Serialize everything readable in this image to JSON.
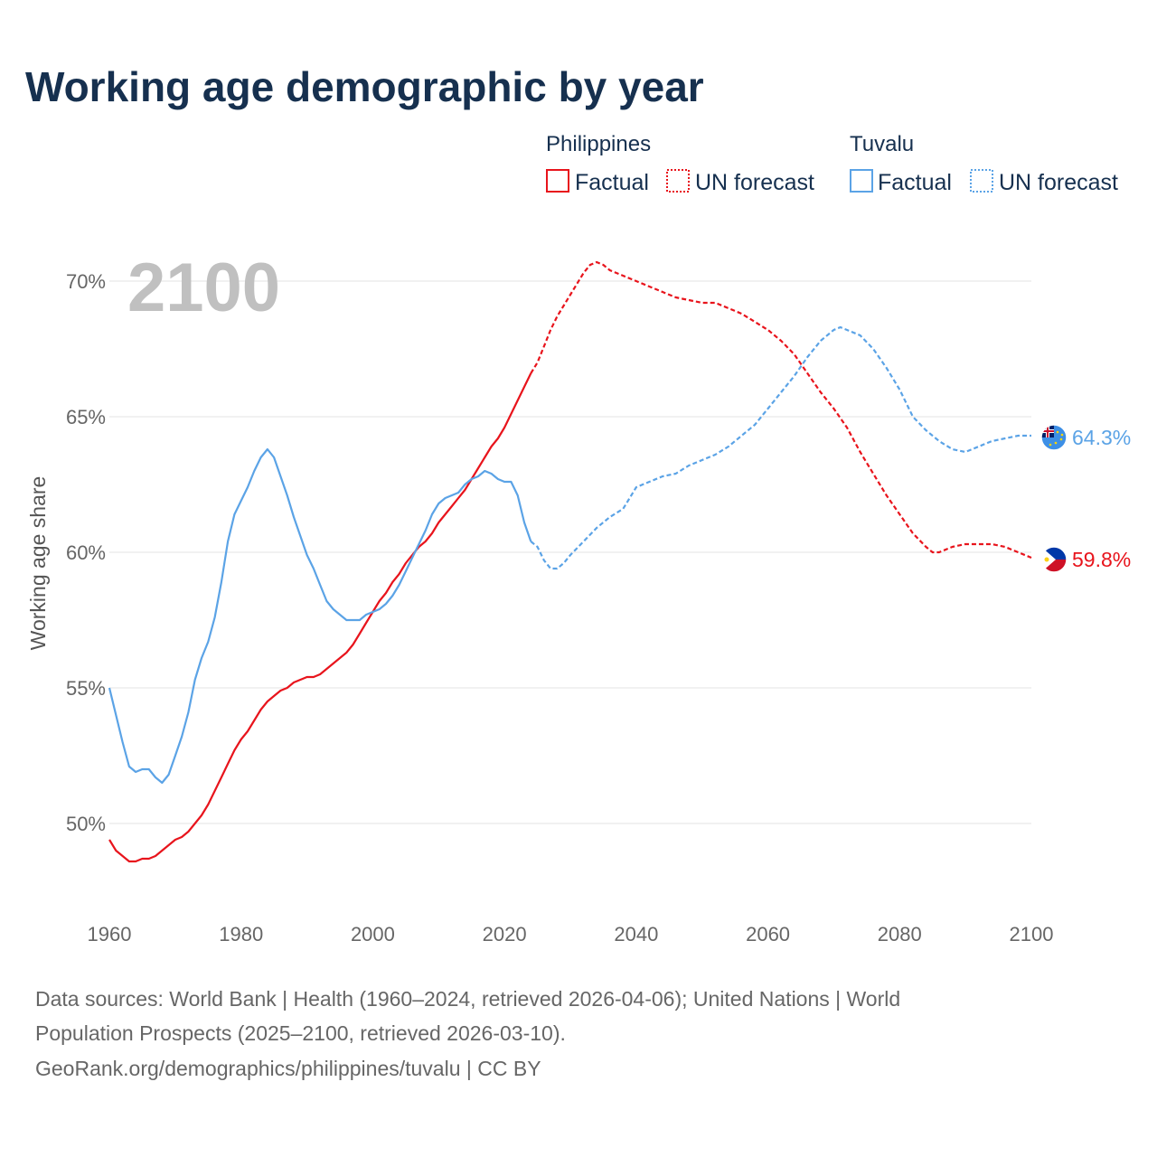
{
  "chart_data": {
    "type": "line",
    "title": "Working age demographic by year",
    "ylabel": "Working age share",
    "xlabel": "",
    "highlight_year": "2100",
    "xlim": [
      1960,
      2100
    ],
    "ylim": [
      47,
      72
    ],
    "x_ticks": [
      1960,
      1980,
      2000,
      2020,
      2040,
      2060,
      2080,
      2100
    ],
    "x_tick_labels": [
      "1960",
      "1980",
      "2000",
      "2020",
      "2040",
      "2060",
      "2080",
      "2100"
    ],
    "y_ticks": [
      50,
      55,
      60,
      65,
      70
    ],
    "y_tick_labels": [
      "50%",
      "55%",
      "60%",
      "65%",
      "70%"
    ],
    "legend": {
      "groups": [
        {
          "name": "Philippines",
          "color": "#e8141c",
          "factual_label": "Factual",
          "forecast_label": "UN forecast"
        },
        {
          "name": "Tuvalu",
          "color": "#5ba3e6",
          "factual_label": "Factual",
          "forecast_label": "UN forecast"
        }
      ]
    },
    "series": [
      {
        "name": "Philippines",
        "color": "#e8141c",
        "end_label": "59.8%",
        "factual": {
          "x": [
            1960,
            1961,
            1962,
            1963,
            1964,
            1965,
            1966,
            1967,
            1968,
            1969,
            1970,
            1971,
            1972,
            1973,
            1974,
            1975,
            1976,
            1977,
            1978,
            1979,
            1980,
            1981,
            1982,
            1983,
            1984,
            1985,
            1986,
            1987,
            1988,
            1989,
            1990,
            1991,
            1992,
            1993,
            1994,
            1995,
            1996,
            1997,
            1998,
            1999,
            2000,
            2001,
            2002,
            2003,
            2004,
            2005,
            2006,
            2007,
            2008,
            2009,
            2010,
            2011,
            2012,
            2013,
            2014,
            2015,
            2016,
            2017,
            2018,
            2019,
            2020,
            2021,
            2022,
            2023,
            2024
          ],
          "y": [
            49.4,
            49.0,
            48.8,
            48.6,
            48.6,
            48.7,
            48.7,
            48.8,
            49.0,
            49.2,
            49.4,
            49.5,
            49.7,
            50.0,
            50.3,
            50.7,
            51.2,
            51.7,
            52.2,
            52.7,
            53.1,
            53.4,
            53.8,
            54.2,
            54.5,
            54.7,
            54.9,
            55.0,
            55.2,
            55.3,
            55.4,
            55.4,
            55.5,
            55.7,
            55.9,
            56.1,
            56.3,
            56.6,
            57.0,
            57.4,
            57.8,
            58.2,
            58.5,
            58.9,
            59.2,
            59.6,
            59.9,
            60.2,
            60.4,
            60.7,
            61.1,
            61.4,
            61.7,
            62.0,
            62.3,
            62.7,
            63.1,
            63.5,
            63.9,
            64.2,
            64.6,
            65.1,
            65.6,
            66.1,
            66.6
          ]
        },
        "forecast": {
          "x": [
            2024,
            2025,
            2026,
            2027,
            2028,
            2029,
            2030,
            2031,
            2032,
            2033,
            2034,
            2035,
            2036,
            2037,
            2038,
            2039,
            2040,
            2042,
            2044,
            2046,
            2048,
            2050,
            2052,
            2054,
            2056,
            2058,
            2060,
            2062,
            2064,
            2066,
            2068,
            2070,
            2072,
            2074,
            2076,
            2078,
            2080,
            2082,
            2084,
            2085,
            2086,
            2088,
            2090,
            2092,
            2094,
            2096,
            2098,
            2100
          ],
          "y": [
            66.6,
            67.0,
            67.6,
            68.2,
            68.7,
            69.1,
            69.5,
            69.9,
            70.3,
            70.6,
            70.7,
            70.6,
            70.4,
            70.3,
            70.2,
            70.1,
            70.0,
            69.8,
            69.6,
            69.4,
            69.3,
            69.2,
            69.2,
            69.0,
            68.8,
            68.5,
            68.2,
            67.8,
            67.3,
            66.6,
            65.9,
            65.3,
            64.6,
            63.7,
            62.9,
            62.1,
            61.4,
            60.7,
            60.2,
            60.0,
            60.0,
            60.2,
            60.3,
            60.3,
            60.3,
            60.2,
            60.0,
            59.8
          ]
        }
      },
      {
        "name": "Tuvalu",
        "color": "#5ba3e6",
        "end_label": "64.3%",
        "factual": {
          "x": [
            1960,
            1961,
            1962,
            1963,
            1964,
            1965,
            1966,
            1967,
            1968,
            1969,
            1970,
            1971,
            1972,
            1973,
            1974,
            1975,
            1976,
            1977,
            1978,
            1979,
            1980,
            1981,
            1982,
            1983,
            1984,
            1985,
            1986,
            1987,
            1988,
            1989,
            1990,
            1991,
            1992,
            1993,
            1994,
            1995,
            1996,
            1997,
            1998,
            1999,
            2000,
            2001,
            2002,
            2003,
            2004,
            2005,
            2006,
            2007,
            2008,
            2009,
            2010,
            2011,
            2012,
            2013,
            2014,
            2015,
            2016,
            2017,
            2018,
            2019,
            2020,
            2021,
            2022,
            2023,
            2024
          ],
          "y": [
            55.0,
            54.0,
            53.0,
            52.1,
            51.9,
            52.0,
            52.0,
            51.7,
            51.5,
            51.8,
            52.5,
            53.2,
            54.1,
            55.3,
            56.1,
            56.7,
            57.6,
            58.9,
            60.4,
            61.4,
            61.9,
            62.4,
            63.0,
            63.5,
            63.8,
            63.5,
            62.8,
            62.1,
            61.3,
            60.6,
            59.9,
            59.4,
            58.8,
            58.2,
            57.9,
            57.7,
            57.5,
            57.5,
            57.5,
            57.7,
            57.8,
            57.9,
            58.1,
            58.4,
            58.8,
            59.3,
            59.8,
            60.3,
            60.8,
            61.4,
            61.8,
            62.0,
            62.1,
            62.2,
            62.5,
            62.7,
            62.8,
            63.0,
            62.9,
            62.7,
            62.6,
            62.6,
            62.1,
            61.1,
            60.4
          ]
        },
        "forecast": {
          "x": [
            2024,
            2025,
            2026,
            2027,
            2028,
            2029,
            2030,
            2032,
            2034,
            2036,
            2038,
            2040,
            2042,
            2044,
            2046,
            2048,
            2050,
            2052,
            2054,
            2056,
            2058,
            2060,
            2062,
            2064,
            2066,
            2068,
            2070,
            2071,
            2072,
            2074,
            2076,
            2078,
            2080,
            2082,
            2084,
            2086,
            2088,
            2090,
            2092,
            2094,
            2096,
            2098,
            2100
          ],
          "y": [
            60.4,
            60.2,
            59.7,
            59.4,
            59.4,
            59.6,
            59.9,
            60.4,
            60.9,
            61.3,
            61.6,
            62.4,
            62.6,
            62.8,
            62.9,
            63.2,
            63.4,
            63.6,
            63.9,
            64.3,
            64.7,
            65.3,
            65.9,
            66.5,
            67.2,
            67.8,
            68.2,
            68.3,
            68.2,
            68.0,
            67.5,
            66.8,
            66.0,
            65.0,
            64.5,
            64.1,
            63.8,
            63.7,
            63.9,
            64.1,
            64.2,
            64.3,
            64.3
          ]
        }
      }
    ]
  },
  "source_lines": [
    "Data sources: World Bank | Health (1960–2024, retrieved 2026-04-06); United Nations | World",
    "Population Prospects (2025–2100, retrieved 2026-03-10).",
    "GeoRank.org/demographics/philippines/tuvalu | CC BY"
  ]
}
